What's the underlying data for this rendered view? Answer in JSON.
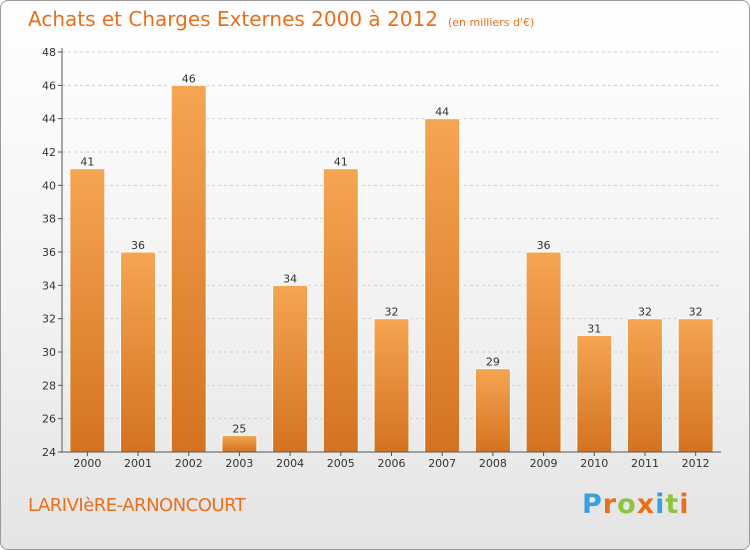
{
  "chart_data": {
    "type": "bar",
    "title": "Achats et Charges Externes 2000 à 2012",
    "unit_label": "(en milliers d'€)",
    "categories": [
      "2000",
      "2001",
      "2002",
      "2003",
      "2004",
      "2005",
      "2006",
      "2007",
      "2008",
      "2009",
      "2010",
      "2011",
      "2012"
    ],
    "values": [
      41,
      36,
      46,
      25,
      34,
      41,
      32,
      44,
      29,
      36,
      31,
      32,
      32
    ],
    "ylim": [
      24,
      48
    ],
    "yticks": [
      24,
      26,
      28,
      30,
      32,
      34,
      36,
      38,
      40,
      42,
      44,
      46,
      48
    ],
    "xlabel": "",
    "ylabel": "",
    "grid": true,
    "bar_color_top": "#f5a553",
    "bar_color_bottom": "#d4731f"
  },
  "footer": {
    "commune": "LARIVIèRE-ARNONCOURT",
    "logo_letters": [
      "P",
      "r",
      "o",
      "x",
      "i",
      "t",
      "i"
    ],
    "logo_colors": [
      "#3aa0dc",
      "#ea6f1c",
      "#8cc63e",
      "#ea6f1c",
      "#3aa0dc",
      "#8cc63e",
      "#ea6f1c"
    ]
  }
}
